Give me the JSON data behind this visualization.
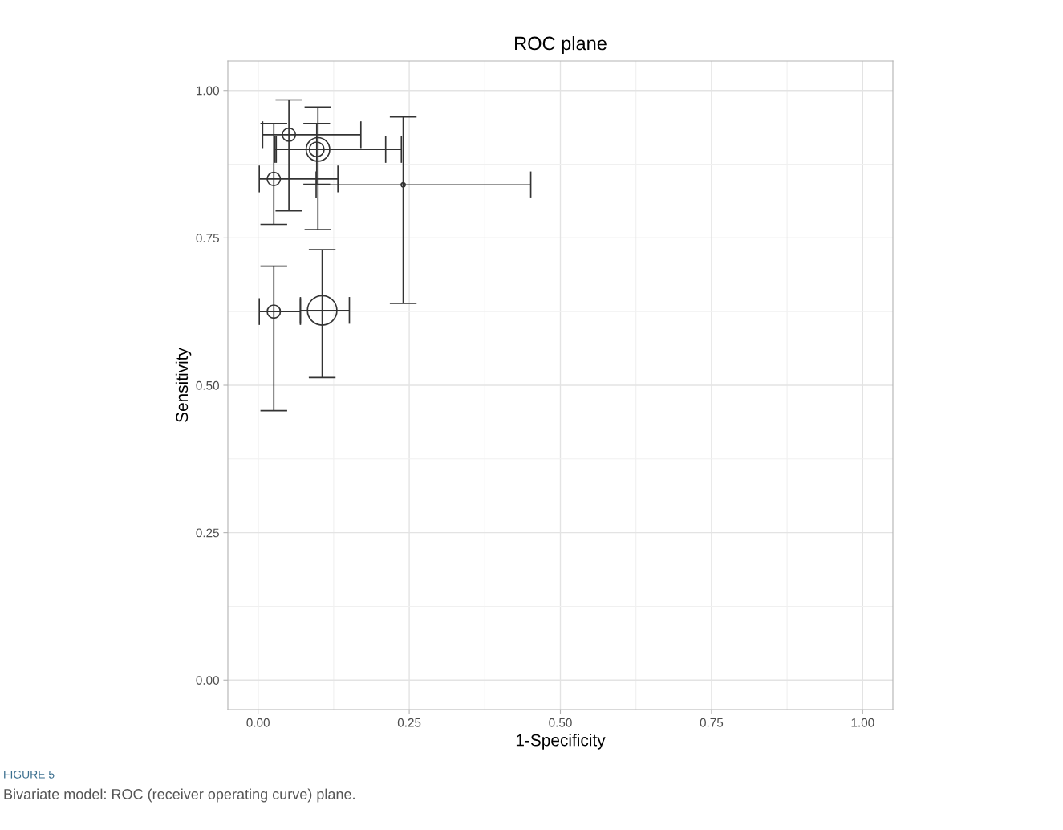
{
  "chart_data": {
    "type": "bubble",
    "title": "ROC plane",
    "xlabel": "1-Specificity",
    "ylabel": "Sensitivity",
    "annotations": [
      "FIGURE 5",
      "Bivariate model: ROC (receiver operating curve) plane."
    ],
    "x": [
      0.051,
      0.099,
      0.097,
      0.24,
      0.026,
      0.026,
      0.106
    ],
    "values": [
      0.925,
      0.9,
      0.9,
      0.84,
      0.85,
      0.625,
      0.627
    ],
    "sizes": [
      0.2,
      0.64,
      0.25,
      0.02,
      0.2,
      0.2,
      1
    ],
    "errors": [
      [
        0.796,
        0.984
      ],
      [
        0.764,
        0.972
      ],
      [
        0.841,
        0.944
      ],
      [
        0.639,
        0.955
      ],
      [
        0.773,
        0.944
      ],
      [
        0.457,
        0.702
      ],
      [
        0.513,
        0.73
      ]
    ],
    "xerrors": [
      [
        0.0075,
        0.17
      ],
      [
        0.03,
        0.211
      ],
      [
        0.028,
        0.237
      ],
      [
        0.096,
        0.451
      ],
      [
        0.002,
        0.132
      ],
      [
        0.002,
        0.07
      ],
      [
        0.07,
        0.151
      ]
    ],
    "color": "#333333",
    "xlim": [
      -0.05,
      1.05
    ],
    "ylim": [
      -0.05,
      1.05
    ],
    "xticks": [
      {
        "value": 0,
        "label": "0.00"
      },
      {
        "value": 0.25,
        "label": "0.25"
      },
      {
        "value": 0.5,
        "label": "0.50"
      },
      {
        "value": 0.75,
        "label": "0.75"
      },
      {
        "value": 1,
        "label": "1.00"
      }
    ],
    "yticks": [
      {
        "value": 0,
        "label": "0.00"
      },
      {
        "value": 0.25,
        "label": "0.25"
      },
      {
        "value": 0.5,
        "label": "0.50"
      },
      {
        "value": 0.75,
        "label": "0.75"
      },
      {
        "value": 1,
        "label": "1.00"
      }
    ],
    "grid": true,
    "marker": "circle"
  }
}
